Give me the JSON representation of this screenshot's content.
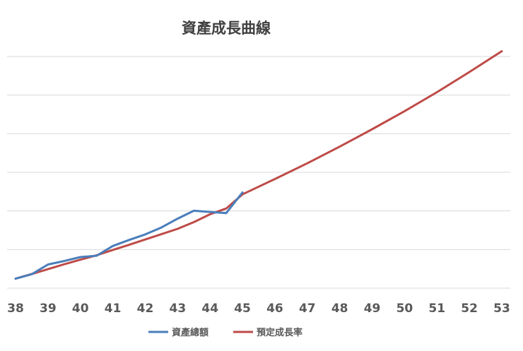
{
  "chart_data": {
    "type": "line",
    "title": "資產成長曲線",
    "xlabel": "",
    "ylabel": "",
    "x_ticks": [
      "38",
      "39",
      "40",
      "41",
      "42",
      "43",
      "44",
      "45",
      "46",
      "47",
      "48",
      "49",
      "50",
      "51",
      "52",
      "53"
    ],
    "xlim": [
      38,
      53
    ],
    "ylim": [
      0,
      100
    ],
    "y_tick_labels_shown": false,
    "grid": "horizontal",
    "legend_position": "bottom",
    "series": [
      {
        "name": "資產總額",
        "color": "#4a7ebb",
        "x": [
          38,
          38.5,
          39,
          39.5,
          40,
          40.5,
          41,
          41.5,
          42,
          42.5,
          43,
          43.5,
          44,
          44.5,
          45
        ],
        "y": [
          4.1,
          6,
          10.2,
          11.7,
          13.4,
          14,
          18.2,
          20.8,
          23.2,
          26.2,
          30,
          33.4,
          32.9,
          32.4,
          41.3
        ]
      },
      {
        "name": "預定成長率",
        "color": "#be4b48",
        "x": [
          38,
          38.5,
          39,
          39.5,
          40,
          40.5,
          41,
          41.5,
          42,
          42.5,
          43,
          43.5,
          44,
          44.5,
          45,
          46,
          47,
          48,
          49,
          50,
          51,
          52,
          53
        ],
        "y": [
          4.1,
          6.1,
          8.2,
          10.3,
          12.3,
          14.2,
          16.5,
          18.7,
          21,
          23.3,
          25.6,
          28.5,
          31.9,
          34.4,
          40.5,
          47.1,
          53.9,
          61.1,
          68.6,
          76.4,
          84.6,
          93.3,
          102.3
        ]
      }
    ]
  }
}
